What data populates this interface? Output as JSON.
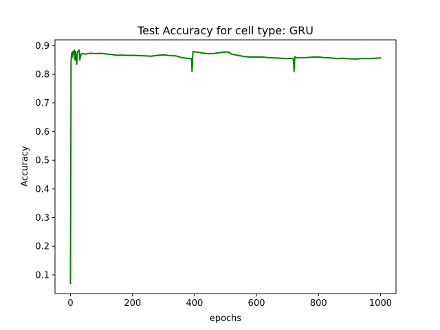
{
  "chart_data": {
    "type": "line",
    "title": "Test Accuracy for cell type: GRU",
    "xlabel": "epochs",
    "ylabel": "Accuracy",
    "xlim": [
      -50,
      1050
    ],
    "ylim": [
      0.035,
      0.92
    ],
    "xticks": [
      0,
      200,
      400,
      600,
      800,
      1000
    ],
    "yticks": [
      0.1,
      0.2,
      0.3,
      0.4,
      0.5,
      0.6,
      0.7,
      0.8,
      0.9
    ],
    "xtick_labels": [
      "0",
      "200",
      "400",
      "600",
      "800",
      "1000"
    ],
    "ytick_labels": [
      "0.1",
      "0.2",
      "0.3",
      "0.4",
      "0.5",
      "0.6",
      "0.7",
      "0.8",
      "0.9"
    ],
    "grid": false,
    "series": [
      {
        "color": "#008000",
        "x": [
          0,
          2,
          4,
          6,
          8,
          10,
          12,
          14,
          16,
          18,
          20,
          22,
          24,
          26,
          28,
          30,
          32,
          34,
          40,
          50,
          60,
          70,
          80,
          100,
          120,
          140,
          150,
          160,
          180,
          200,
          220,
          240,
          260,
          280,
          300,
          320,
          340,
          360,
          380,
          390,
          391,
          392,
          393,
          394,
          395,
          396,
          400,
          410,
          420,
          440,
          460,
          480,
          500,
          510,
          520,
          540,
          560,
          580,
          600,
          620,
          640,
          660,
          680,
          700,
          718,
          720,
          721,
          722,
          723,
          724,
          726,
          740,
          760,
          780,
          800,
          820,
          840,
          860,
          880,
          900,
          920,
          940,
          960,
          980,
          1000
        ],
        "y": [
          0.07,
          0.85,
          0.875,
          0.86,
          0.88,
          0.87,
          0.885,
          0.85,
          0.88,
          0.86,
          0.835,
          0.875,
          0.88,
          0.88,
          0.885,
          0.85,
          0.86,
          0.87,
          0.872,
          0.87,
          0.873,
          0.873,
          0.872,
          0.873,
          0.87,
          0.868,
          0.866,
          0.867,
          0.866,
          0.866,
          0.865,
          0.864,
          0.863,
          0.866,
          0.868,
          0.865,
          0.864,
          0.858,
          0.855,
          0.855,
          0.84,
          0.81,
          0.83,
          0.86,
          0.878,
          0.88,
          0.878,
          0.877,
          0.875,
          0.872,
          0.872,
          0.875,
          0.878,
          0.877,
          0.87,
          0.866,
          0.862,
          0.86,
          0.86,
          0.86,
          0.858,
          0.857,
          0.856,
          0.855,
          0.856,
          0.84,
          0.81,
          0.83,
          0.85,
          0.862,
          0.858,
          0.858,
          0.858,
          0.86,
          0.86,
          0.858,
          0.857,
          0.855,
          0.856,
          0.854,
          0.853,
          0.855,
          0.855,
          0.856,
          0.857
        ]
      }
    ]
  }
}
